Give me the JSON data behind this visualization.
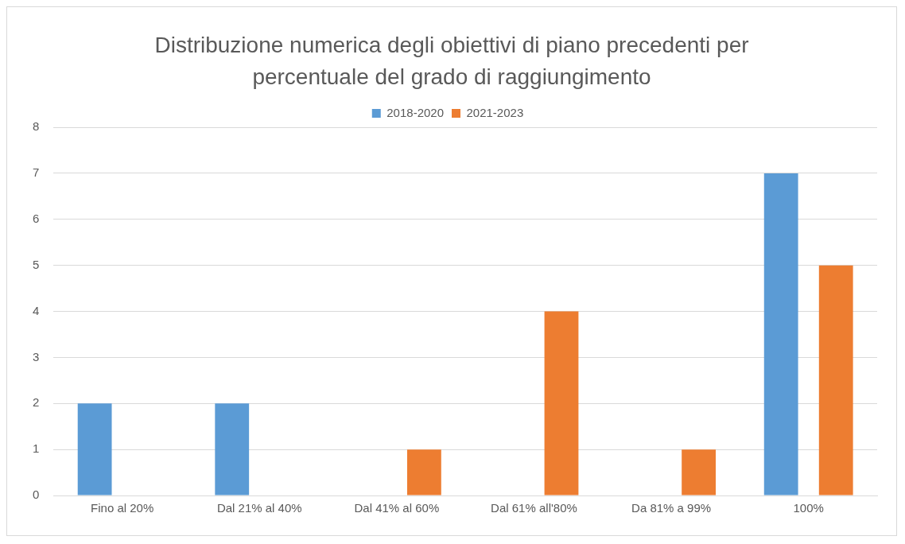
{
  "chart_data": {
    "type": "bar",
    "title": "Distribuzione numerica degli obiettivi di piano precedenti per percentuale del grado di raggiungimento",
    "categories": [
      "Fino al 20%",
      "Dal 21% al 40%",
      "Dal 41% al 60%",
      "Dal 61% all'80%",
      "Da 81% a 99%",
      "100%"
    ],
    "series": [
      {
        "name": "2018-2020",
        "color": "#5b9bd5",
        "values": [
          2,
          2,
          0,
          0,
          0,
          7
        ]
      },
      {
        "name": "2021-2023",
        "color": "#ed7d31",
        "values": [
          0,
          0,
          1,
          4,
          1,
          5
        ]
      }
    ],
    "ylim": [
      0,
      8
    ],
    "yticks": [
      0,
      1,
      2,
      3,
      4,
      5,
      6,
      7,
      8
    ],
    "grid": "y",
    "legend": "top"
  }
}
